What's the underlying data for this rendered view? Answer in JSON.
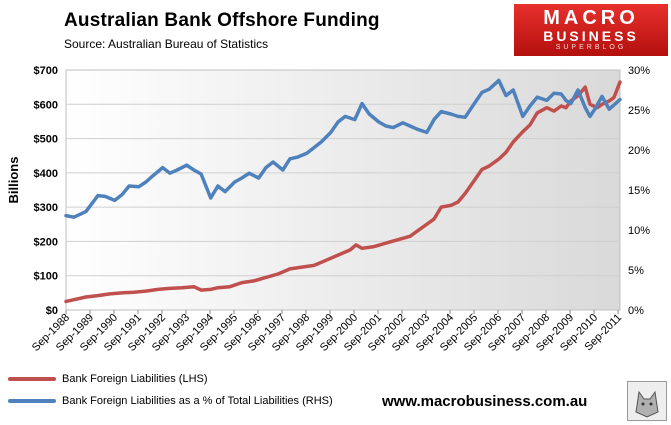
{
  "title": "Australian  Bank Offshore Funding",
  "source": "Source:   Australian Bureau of Statistics",
  "logo": {
    "line1": "MACRO",
    "line2": "BUSINESS",
    "line3": "SUPERBLOG"
  },
  "website": "www.macrobusiness.com.au",
  "legend": [
    {
      "label": "Bank Foreign Liabilities (LHS)",
      "color": "#c0504d"
    },
    {
      "label": "Bank Foreign Liabilities as a % of Total Liabilities (RHS)",
      "color": "#4f81bd"
    }
  ],
  "chart_data": {
    "type": "line",
    "title": "Australian  Bank Offshore Funding",
    "ylabel": "Billions",
    "ylim": [
      0,
      700
    ],
    "yticks": [
      "$0",
      "$100",
      "$200",
      "$300",
      "$400",
      "$500",
      "$600",
      "$700"
    ],
    "ylim_right": [
      0,
      30
    ],
    "yticks_right": [
      "0%",
      "5%",
      "10%",
      "15%",
      "20%",
      "25%",
      "30%"
    ],
    "xlim": [
      1988.67,
      2011.75
    ],
    "xticks": [
      "Sep-1988",
      "Sep-1989",
      "Sep-1990",
      "Sep-1991",
      "Sep-1992",
      "Sep-1993",
      "Sep-1994",
      "Sep-1995",
      "Sep-1996",
      "Sep-1997",
      "Sep-1998",
      "Sep-1999",
      "Sep-2000",
      "Sep-2001",
      "Sep-2002",
      "Sep-2003",
      "Sep-2004",
      "Sep-2005",
      "Sep-2006",
      "Sep-2007",
      "Sep-2008",
      "Sep-2009",
      "Sep-2010",
      "Sep-2011"
    ],
    "series": [
      {
        "name": "Bank Foreign Liabilities (LHS)",
        "axis": "left",
        "color": "#c0504d",
        "x": [
          1988.67,
          1989.0,
          1989.5,
          1990.0,
          1990.5,
          1991.0,
          1991.5,
          1992.0,
          1992.5,
          1993.0,
          1993.5,
          1994.0,
          1994.3,
          1994.7,
          1995.0,
          1995.5,
          1996.0,
          1996.5,
          1997.0,
          1997.5,
          1998.0,
          1998.5,
          1999.0,
          1999.5,
          2000.0,
          2000.5,
          2000.75,
          2001.0,
          2001.5,
          2002.0,
          2002.5,
          2003.0,
          2003.5,
          2004.0,
          2004.3,
          2004.7,
          2005.0,
          2005.3,
          2005.7,
          2006.0,
          2006.3,
          2006.7,
          2007.0,
          2007.3,
          2007.7,
          2008.0,
          2008.3,
          2008.7,
          2009.0,
          2009.3,
          2009.5,
          2009.7,
          2010.0,
          2010.3,
          2010.5,
          2010.8,
          2011.0,
          2011.3,
          2011.5,
          2011.75
        ],
        "values": [
          25,
          30,
          38,
          42,
          47,
          50,
          52,
          55,
          60,
          63,
          65,
          68,
          58,
          60,
          65,
          68,
          80,
          85,
          95,
          105,
          120,
          125,
          130,
          145,
          160,
          175,
          190,
          180,
          185,
          195,
          205,
          215,
          240,
          265,
          300,
          305,
          315,
          340,
          380,
          410,
          420,
          440,
          460,
          490,
          520,
          540,
          575,
          590,
          580,
          595,
          590,
          610,
          625,
          650,
          600,
          590,
          600,
          610,
          620,
          665
        ]
      },
      {
        "name": "Bank Foreign Liabilities as a % of Total Liabilities (RHS)",
        "axis": "right",
        "color": "#4f81bd",
        "x": [
          1988.67,
          1989.0,
          1989.5,
          1990.0,
          1990.3,
          1990.7,
          1991.0,
          1991.3,
          1991.7,
          1992.0,
          1992.3,
          1992.7,
          1993.0,
          1993.3,
          1993.7,
          1994.0,
          1994.3,
          1994.7,
          1995.0,
          1995.3,
          1995.7,
          1996.0,
          1996.3,
          1996.7,
          1997.0,
          1997.3,
          1997.7,
          1998.0,
          1998.3,
          1998.7,
          1999.0,
          1999.3,
          1999.7,
          2000.0,
          2000.3,
          2000.7,
          2001.0,
          2001.3,
          2001.7,
          2002.0,
          2002.3,
          2002.7,
          2003.0,
          2003.3,
          2003.7,
          2004.0,
          2004.3,
          2004.7,
          2005.0,
          2005.3,
          2005.7,
          2006.0,
          2006.3,
          2006.7,
          2007.0,
          2007.3,
          2007.7,
          2008.0,
          2008.3,
          2008.7,
          2009.0,
          2009.3,
          2009.5,
          2009.7,
          2010.0,
          2010.3,
          2010.5,
          2010.7,
          2011.0,
          2011.3,
          2011.75
        ],
        "values": [
          11.8,
          11.6,
          12.3,
          14.3,
          14.2,
          13.7,
          14.4,
          15.5,
          15.4,
          16.0,
          16.8,
          17.8,
          17.1,
          17.5,
          18.1,
          17.5,
          17.0,
          14.0,
          15.5,
          14.8,
          16.0,
          16.5,
          17.1,
          16.5,
          17.8,
          18.5,
          17.5,
          18.9,
          19.1,
          19.6,
          20.3,
          21.0,
          22.2,
          23.5,
          24.2,
          23.8,
          25.8,
          24.5,
          23.5,
          23.0,
          22.8,
          23.4,
          23.0,
          22.6,
          22.2,
          23.8,
          24.8,
          24.5,
          24.2,
          24.1,
          25.9,
          27.2,
          27.6,
          28.7,
          26.8,
          27.5,
          24.2,
          25.5,
          26.6,
          26.2,
          27.1,
          27.0,
          26.2,
          25.8,
          27.5,
          25.3,
          24.2,
          25.1,
          26.7,
          25.1,
          26.3
        ]
      }
    ]
  }
}
